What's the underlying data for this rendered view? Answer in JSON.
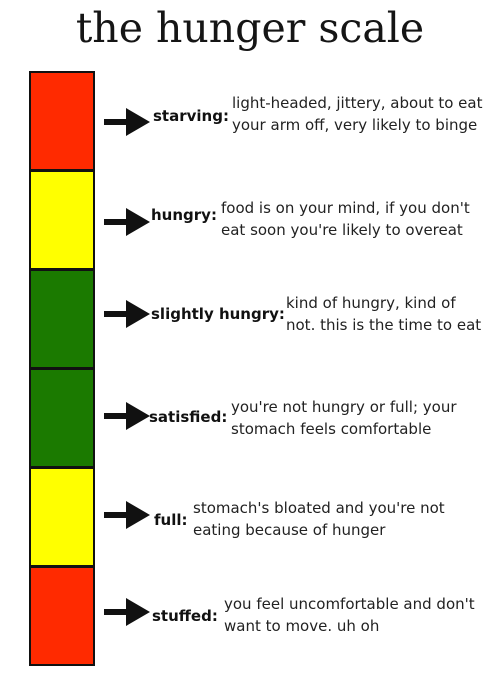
{
  "title": "the hunger scale",
  "colors": {
    "red": "#ff2a00",
    "yellow": "#ffff00",
    "green": "#1b7a00",
    "border": "#111111"
  },
  "icons": {
    "row_pointer": "right-arrow-icon"
  },
  "levels": [
    {
      "label": "starving:",
      "color": "red",
      "description": [
        "light-headed, jittery, about to eat",
        "your arm off, very likely to binge"
      ]
    },
    {
      "label": "hungry:",
      "color": "yellow",
      "description": [
        "food is on your mind, if you don't",
        "eat soon you're likely to overeat"
      ]
    },
    {
      "label": "slightly hungry:",
      "color": "green",
      "description": [
        "kind of hungry, kind of",
        "not. this is the time to eat"
      ]
    },
    {
      "label": "satisfied:",
      "color": "green",
      "description": [
        "you're not hungry or full; your",
        "stomach feels comfortable"
      ]
    },
    {
      "label": "full:",
      "color": "yellow",
      "description": [
        "stomach's bloated and you're not",
        "eating because of hunger"
      ]
    },
    {
      "label": "stuffed:",
      "color": "red",
      "description": [
        "you feel uncomfortable and don't",
        "want to move. uh oh"
      ]
    }
  ]
}
